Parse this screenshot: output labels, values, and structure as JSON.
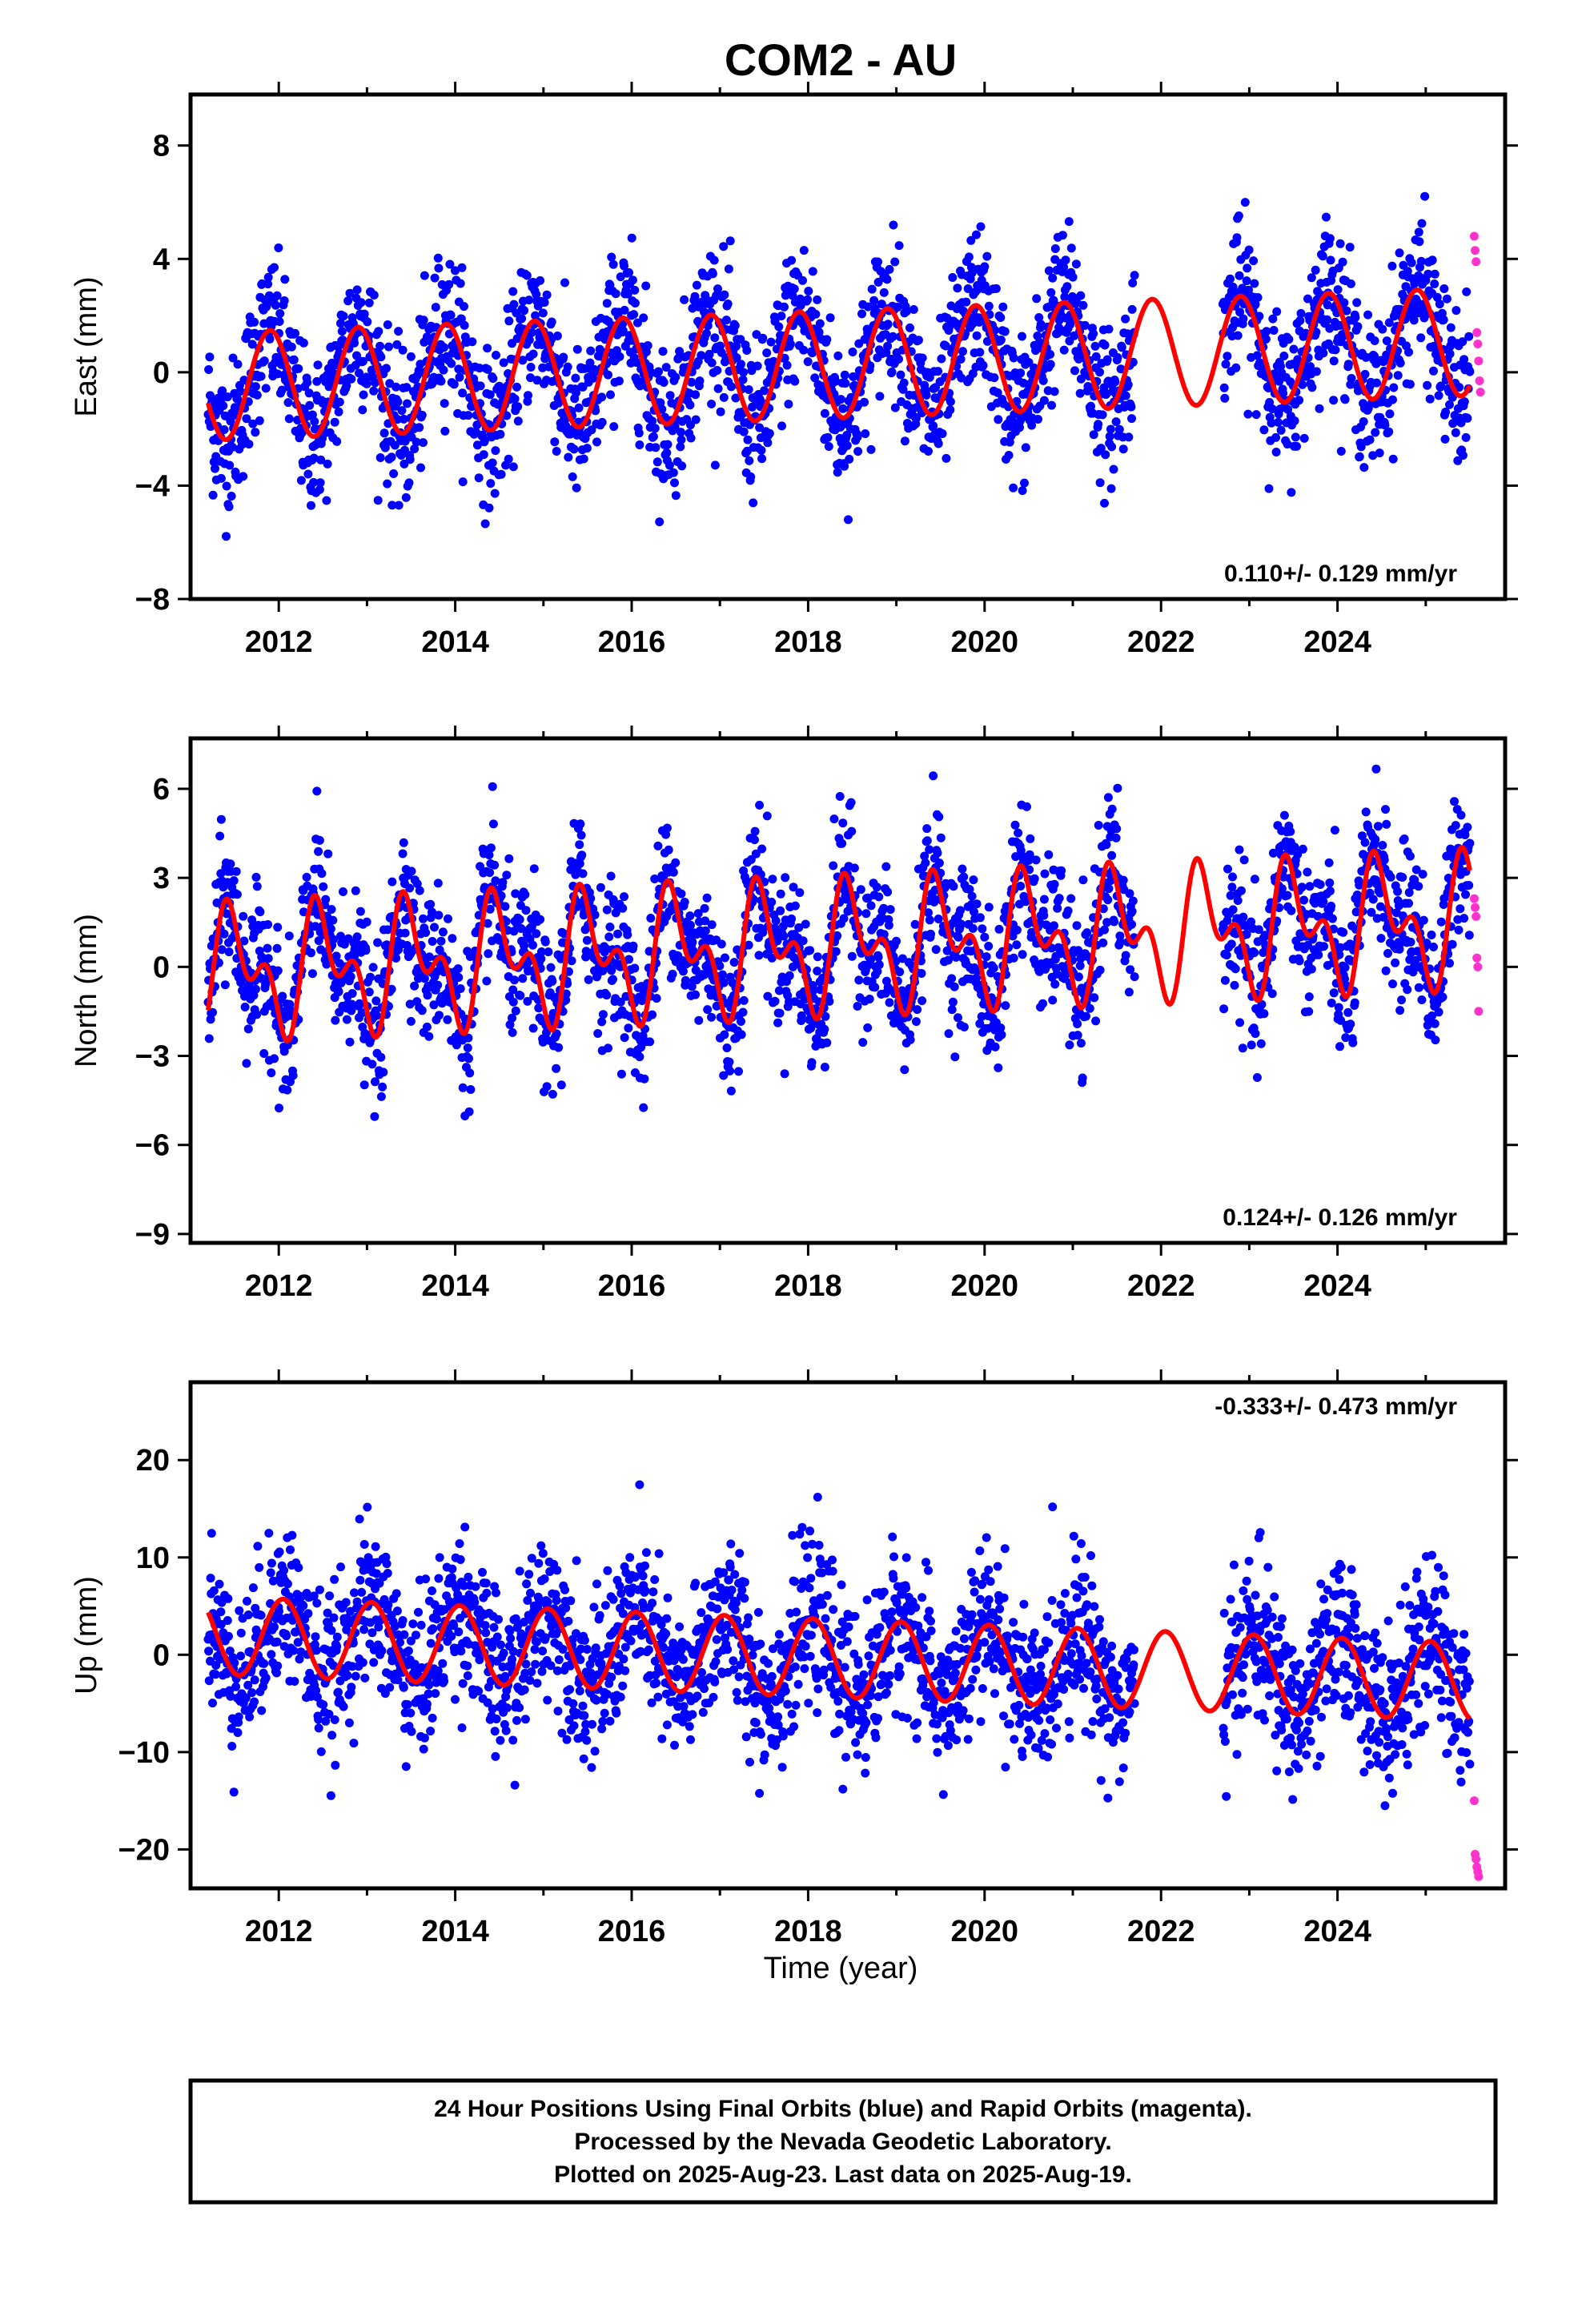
{
  "chart_data": {
    "type": "scatter",
    "title": "COM2 - AU",
    "xlabel": "Time (year)",
    "xlim": [
      2011.0,
      2025.9
    ],
    "x_ticks": [
      "2012",
      "2014",
      "2016",
      "2018",
      "2020",
      "2022",
      "2024"
    ],
    "data_gap": [
      2021.7,
      2022.7
    ],
    "colors": {
      "final_orbits": "#0000ff",
      "rapid_orbits": "#ff33cc",
      "model": "#ff0000"
    },
    "panels": [
      {
        "name": "east",
        "ylabel": "East (mm)",
        "ylim": [
          -8,
          9.8
        ],
        "y_ticks": [
          "8",
          "4",
          "0",
          "−4",
          "−8"
        ],
        "y_tick_values": [
          8,
          4,
          0,
          -4,
          -8
        ],
        "rate_label": "0.110+/- 0.129 mm/yr",
        "model": {
          "rate": 0.11,
          "annual_amplitude": 1.9,
          "annual_peak_year_fraction": 0.9,
          "semiannual_amplitude": 0.0,
          "offset": -0.5,
          "ref_year": 2011.2
        },
        "scatter_sd": 1.3,
        "series": [
          {
            "name": "Final Orbits",
            "x_range": [
              2011.2,
              2025.5
            ]
          },
          {
            "name": "Rapid Orbits",
            "x": [
              2025.55,
              2025.56,
              2025.57,
              2025.58,
              2025.59,
              2025.6,
              2025.61,
              2025.62
            ],
            "y": [
              4.8,
              4.3,
              3.9,
              1.4,
              1.0,
              0.4,
              -0.3,
              -0.7
            ]
          }
        ]
      },
      {
        "name": "north",
        "ylabel": "North (mm)",
        "ylim": [
          -9.3,
          7.7
        ],
        "y_ticks": [
          "6",
          "3",
          "0",
          "−3",
          "−6",
          "−9"
        ],
        "y_tick_values": [
          6,
          3,
          0,
          -3,
          -6,
          -9
        ],
        "rate_label": "0.124+/- 0.126 mm/yr",
        "model": {
          "rate": 0.124,
          "annual_amplitude": 1.6,
          "annual_peak_year_fraction": 0.5,
          "semiannual_amplitude": 1.2,
          "offset": -0.2,
          "ref_year": 2011.2
        },
        "scatter_sd": 1.2,
        "series": [
          {
            "name": "Final Orbits",
            "x_range": [
              2011.2,
              2025.5
            ]
          },
          {
            "name": "Rapid Orbits",
            "x": [
              2025.55,
              2025.56,
              2025.57,
              2025.58,
              2025.59,
              2025.6
            ],
            "y": [
              2.3,
              2.0,
              1.7,
              0.3,
              0.0,
              -1.5
            ]
          }
        ]
      },
      {
        "name": "up",
        "ylabel": "Up (mm)",
        "ylim": [
          -24,
          28
        ],
        "y_ticks": [
          "20",
          "10",
          "0",
          "−10",
          "−20"
        ],
        "y_tick_values": [
          20,
          10,
          0,
          -10,
          -20
        ],
        "rate_label": "-0.333+/- 0.473 mm/yr",
        "model": {
          "rate": -0.333,
          "annual_amplitude": 4.0,
          "annual_peak_year_fraction": 0.05,
          "semiannual_amplitude": 0.0,
          "offset": 2.0,
          "ref_year": 2011.2
        },
        "scatter_sd": 4.0,
        "series": [
          {
            "name": "Final Orbits",
            "x_range": [
              2011.2,
              2025.5
            ]
          },
          {
            "name": "Rapid Orbits",
            "x": [
              2025.55,
              2025.56,
              2025.57,
              2025.58,
              2025.59,
              2025.6
            ],
            "y": [
              -15.0,
              -20.5,
              -21.0,
              -21.8,
              -22.3,
              -22.8
            ]
          }
        ]
      }
    ]
  },
  "footer": {
    "line1": "24 Hour Positions Using Final Orbits (blue) and Rapid Orbits (magenta).",
    "line2": "Processed by the Nevada Geodetic Laboratory.",
    "line3": "Plotted on 2025-Aug-23. Last data on 2025-Aug-19."
  }
}
